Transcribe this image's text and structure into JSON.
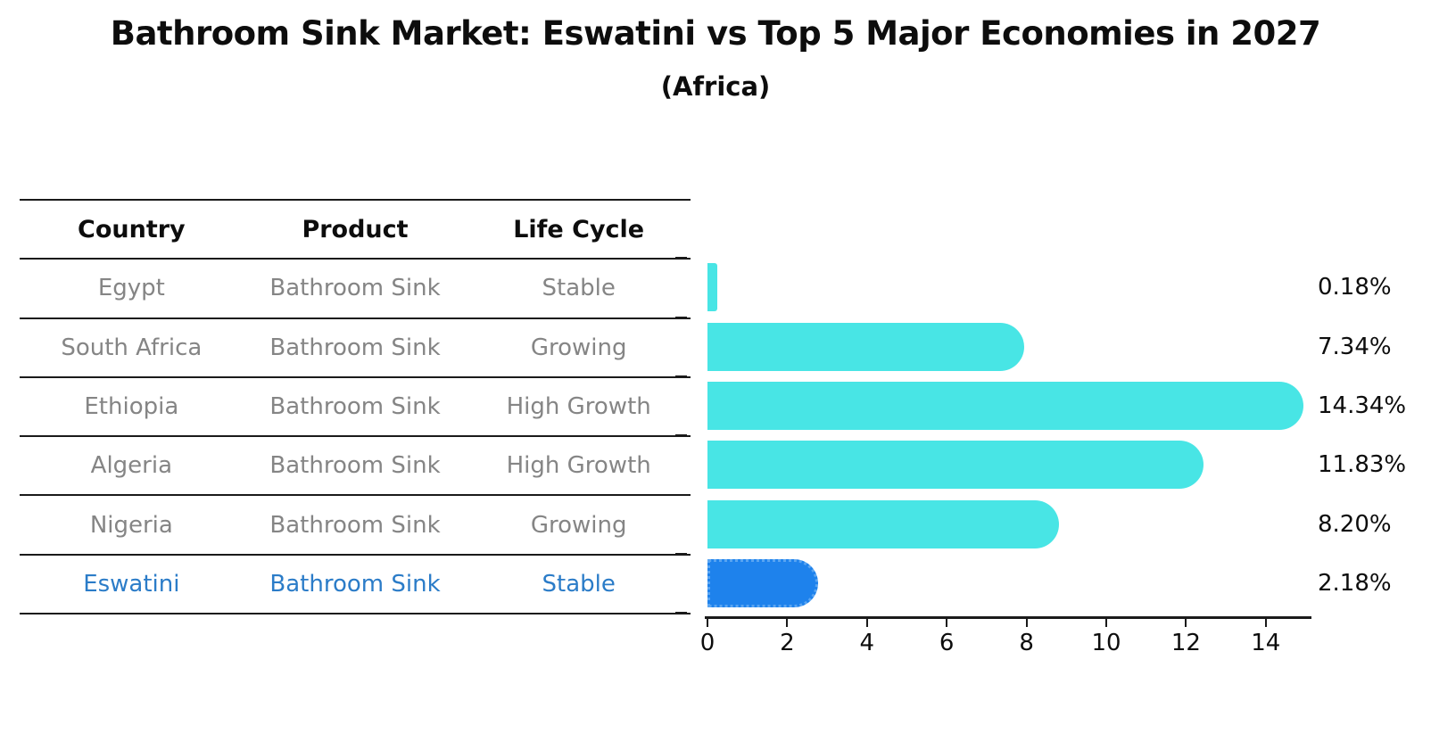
{
  "title": "Bathroom Sink Market: Eswatini vs Top 5 Major Economies in 2027",
  "subtitle": "(Africa)",
  "table": {
    "columns": [
      "Country",
      "Product",
      "Life Cycle"
    ],
    "rows": [
      {
        "country": "Egypt",
        "product": "Bathroom Sink",
        "life_cycle": "Stable",
        "highlight": false
      },
      {
        "country": "South Africa",
        "product": "Bathroom Sink",
        "life_cycle": "Growing",
        "highlight": false
      },
      {
        "country": "Ethiopia",
        "product": "Bathroom Sink",
        "life_cycle": "High Growth",
        "highlight": false
      },
      {
        "country": "Algeria",
        "product": "Bathroom Sink",
        "life_cycle": "High Growth",
        "highlight": false
      },
      {
        "country": "Nigeria",
        "product": "Bathroom Sink",
        "life_cycle": "Growing",
        "highlight": false
      },
      {
        "country": "Eswatini",
        "product": "Bathroom Sink",
        "life_cycle": "Stable",
        "highlight": true
      }
    ]
  },
  "chart_data": {
    "type": "bar",
    "orientation": "horizontal",
    "title": "Bathroom Sink Market: Eswatini vs Top 5 Major Economies in 2027 (Africa)",
    "categories": [
      "Egypt",
      "South Africa",
      "Ethiopia",
      "Algeria",
      "Nigeria",
      "Eswatini"
    ],
    "values": [
      0.18,
      7.34,
      14.34,
      11.83,
      8.2,
      2.18
    ],
    "value_labels": [
      "0.18%",
      "7.34%",
      "14.34%",
      "11.83%",
      "8.20%",
      "2.18%"
    ],
    "x_ticks": [
      "0",
      "2",
      "4",
      "6",
      "8",
      "10",
      "12",
      "14"
    ],
    "x_tick_values": [
      0,
      2,
      4,
      6,
      8,
      10,
      12,
      14
    ],
    "xlim": [
      0,
      15.06
    ],
    "grid": false,
    "legend_position": "none",
    "highlight_index": 5,
    "bar_color_default": "#48e5e5",
    "bar_color_highlight": "#1e82ec",
    "highlight_edge_style": "dotted"
  },
  "colors": {
    "highlight_text": "#2b7cc8",
    "muted_text": "#858585",
    "heading_text": "#0d0d0d",
    "axis": "#1a1a1a"
  }
}
